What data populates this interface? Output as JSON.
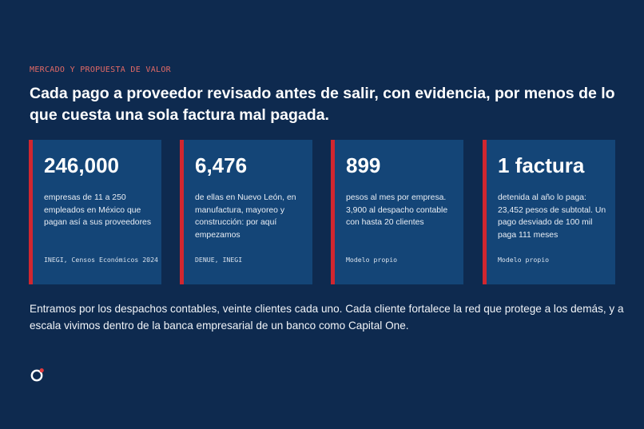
{
  "section_label": "MERCADO Y PROPUESTA DE VALOR",
  "headline": "Cada pago a proveedor revisado antes de salir, con evidencia, por menos de lo que cuesta una sola factura mal pagada.",
  "cards": [
    {
      "value": "246,000",
      "description": "empresas de 11 a 250 empleados en México que pagan así a sus proveedores",
      "source": "INEGI, Censos Económicos 2024"
    },
    {
      "value": "6,476",
      "description": "de ellas en Nuevo León, en manufactura, mayoreo y construcción: por aquí empezamos",
      "source": "DENUE, INEGI"
    },
    {
      "value": "899",
      "description": "pesos al mes por empresa. 3,900 al despacho contable con hasta 20 clientes",
      "source": "Modelo propio"
    },
    {
      "value": "1 factura",
      "description": "detenida al año lo paga: 23,452 pesos de subtotal. Un pago desviado de 100 mil paga 111 meses",
      "source": "Modelo propio"
    }
  ],
  "body_text": "Entramos por los despachos contables, veinte clientes cada uno. Cada cliente fortalece la red que protege a los demás, y a escala vivimos dentro de la banca empresarial de un banco como Capital One.",
  "logo_icon": "brand-ring-logo-icon",
  "colors": {
    "background": "#0e2a4f",
    "card_background": "#144577",
    "accent_red": "#d1262f",
    "eyebrow": "#e36a66"
  }
}
